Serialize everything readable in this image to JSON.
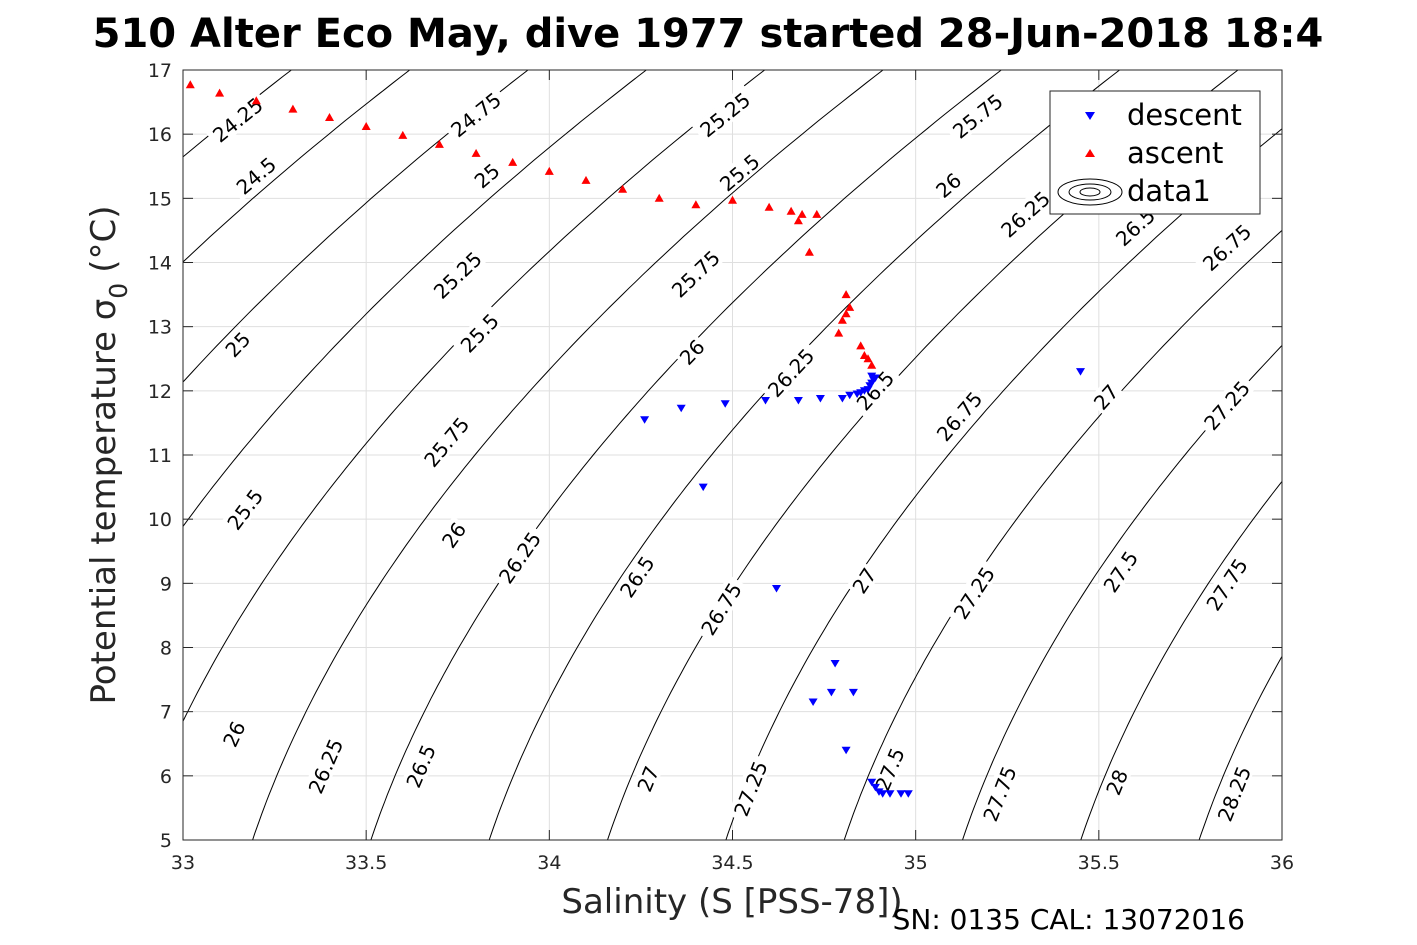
{
  "title": "510 Alter Eco May, dive 1977 started 28-Jun-2018 18:4",
  "footer": "SN: 0135  CAL: 13072016",
  "chart_data": {
    "type": "scatter",
    "xlabel": "Salinity (S [PSS-78])",
    "ylabel": "Potential temperature σ",
    "ylabel_sub": "0",
    "ylabel_unit": "(°C)",
    "xlim": [
      33,
      36
    ],
    "ylim": [
      5,
      17
    ],
    "xticks": [
      33,
      33.5,
      34,
      34.5,
      35,
      35.5,
      36
    ],
    "xtick_labels": [
      "33",
      "33.5",
      "34",
      "34.5",
      "35",
      "35.5",
      "36"
    ],
    "yticks": [
      5,
      6,
      7,
      8,
      9,
      10,
      11,
      12,
      13,
      14,
      15,
      16,
      17
    ],
    "ytick_labels": [
      "5",
      "6",
      "7",
      "8",
      "9",
      "10",
      "11",
      "12",
      "13",
      "14",
      "15",
      "16",
      "17"
    ],
    "grid": true,
    "legend_position": "top-right",
    "legend": [
      {
        "label": "descent",
        "marker": "triangle-down",
        "color": "#0000ff"
      },
      {
        "label": "ascent",
        "marker": "triangle-up",
        "color": "#ff0000"
      },
      {
        "label": "data1",
        "marker": "contour",
        "color": "#000000"
      }
    ],
    "contour_levels": [
      24.25,
      24.5,
      24.75,
      25,
      25.25,
      25.5,
      25.75,
      26,
      26.25,
      26.5,
      26.75,
      27,
      27.25,
      27.5,
      27.75,
      28,
      28.25
    ],
    "contour_labels": [
      {
        "text": "24.25",
        "x": 33.15,
        "y": 16.22
      },
      {
        "text": "24.75",
        "x": 33.8,
        "y": 16.3
      },
      {
        "text": "25.25",
        "x": 34.48,
        "y": 16.3
      },
      {
        "text": "25.75",
        "x": 35.17,
        "y": 16.28
      },
      {
        "text": "24.5",
        "x": 33.2,
        "y": 15.35
      },
      {
        "text": "25",
        "x": 33.83,
        "y": 15.35
      },
      {
        "text": "25.5",
        "x": 34.52,
        "y": 15.4
      },
      {
        "text": "26",
        "x": 35.09,
        "y": 15.2
      },
      {
        "text": "26.25",
        "x": 35.3,
        "y": 14.75
      },
      {
        "text": "26.5",
        "x": 35.6,
        "y": 14.55
      },
      {
        "text": "26.75",
        "x": 35.85,
        "y": 14.23
      },
      {
        "text": "25.25",
        "x": 33.75,
        "y": 13.8
      },
      {
        "text": "25.75",
        "x": 34.4,
        "y": 13.82
      },
      {
        "text": "25",
        "x": 33.15,
        "y": 12.72
      },
      {
        "text": "25.5",
        "x": 33.81,
        "y": 12.9
      },
      {
        "text": "26",
        "x": 34.39,
        "y": 12.6
      },
      {
        "text": "26.25",
        "x": 34.66,
        "y": 12.28
      },
      {
        "text": "26.5",
        "x": 34.89,
        "y": 12.0
      },
      {
        "text": "26.75",
        "x": 35.12,
        "y": 11.6
      },
      {
        "text": "27",
        "x": 35.52,
        "y": 11.9
      },
      {
        "text": "27.25",
        "x": 35.85,
        "y": 11.77
      },
      {
        "text": "25.75",
        "x": 33.72,
        "y": 11.2
      },
      {
        "text": "25.5",
        "x": 33.17,
        "y": 10.15
      },
      {
        "text": "26",
        "x": 33.74,
        "y": 9.75
      },
      {
        "text": "26.25",
        "x": 33.92,
        "y": 9.4
      },
      {
        "text": "26.5",
        "x": 34.24,
        "y": 9.1
      },
      {
        "text": "26.75",
        "x": 34.47,
        "y": 8.6
      },
      {
        "text": "27",
        "x": 34.86,
        "y": 9.04
      },
      {
        "text": "27.25",
        "x": 35.16,
        "y": 8.85
      },
      {
        "text": "27.5",
        "x": 35.56,
        "y": 9.18
      },
      {
        "text": "27.75",
        "x": 35.85,
        "y": 8.98
      },
      {
        "text": "26",
        "x": 33.14,
        "y": 6.65
      },
      {
        "text": "26.25",
        "x": 33.39,
        "y": 6.15
      },
      {
        "text": "26.5",
        "x": 33.65,
        "y": 6.15
      },
      {
        "text": "27",
        "x": 34.27,
        "y": 5.95
      },
      {
        "text": "27.25",
        "x": 34.55,
        "y": 5.8
      },
      {
        "text": "27.5",
        "x": 34.93,
        "y": 6.1
      },
      {
        "text": "27.75",
        "x": 35.23,
        "y": 5.72
      },
      {
        "text": "28",
        "x": 35.55,
        "y": 5.9
      },
      {
        "text": "28.25",
        "x": 35.87,
        "y": 5.72
      }
    ],
    "series": [
      {
        "name": "descent",
        "marker": "triangle-down",
        "color": "#0000ff",
        "x": [
          34.26,
          34.36,
          34.48,
          34.42,
          34.59,
          34.68,
          34.74,
          34.8,
          34.82,
          34.84,
          34.85,
          34.86,
          34.87,
          34.875,
          34.88,
          34.885,
          34.89,
          34.88,
          34.62,
          34.78,
          34.72,
          34.77,
          34.83,
          34.81,
          34.88,
          34.89,
          34.9,
          34.91,
          34.93,
          34.96,
          34.98,
          35.45
        ],
        "y": [
          11.55,
          11.73,
          11.8,
          10.5,
          11.85,
          11.85,
          11.88,
          11.88,
          11.93,
          11.95,
          11.97,
          12.0,
          12.02,
          12.08,
          12.12,
          12.17,
          12.2,
          12.23,
          8.92,
          7.75,
          7.15,
          7.3,
          7.3,
          6.4,
          5.9,
          5.82,
          5.75,
          5.72,
          5.72,
          5.72,
          5.72,
          12.3
        ]
      },
      {
        "name": "ascent",
        "marker": "triangle-up",
        "color": "#ff0000",
        "x": [
          33.02,
          33.1,
          33.2,
          33.3,
          33.4,
          33.5,
          33.6,
          33.7,
          33.8,
          33.9,
          34.0,
          34.1,
          34.2,
          34.3,
          34.4,
          34.5,
          34.6,
          34.66,
          34.69,
          34.73,
          34.68,
          34.71,
          34.81,
          34.82,
          34.8,
          34.81,
          34.79,
          34.85,
          34.86,
          34.87,
          34.88
        ],
        "y": [
          16.77,
          16.64,
          16.52,
          16.39,
          16.26,
          16.12,
          15.98,
          15.84,
          15.7,
          15.56,
          15.42,
          15.28,
          15.14,
          15.0,
          14.9,
          14.97,
          14.86,
          14.8,
          14.75,
          14.75,
          14.65,
          14.16,
          13.5,
          13.3,
          13.1,
          13.2,
          12.9,
          12.7,
          12.55,
          12.5,
          12.4
        ]
      }
    ]
  }
}
